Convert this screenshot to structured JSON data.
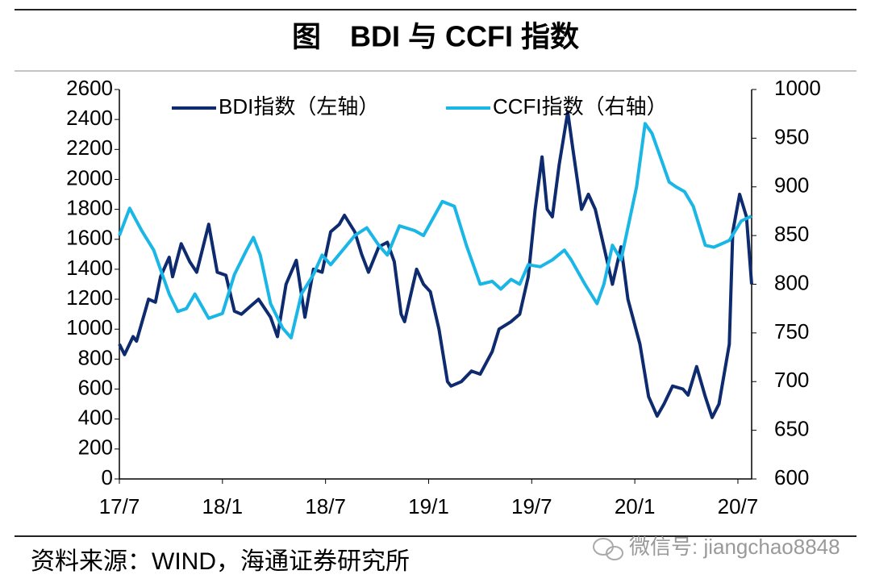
{
  "chart_data": {
    "type": "line",
    "title": "图　BDI 与 CCFI 指数",
    "source": "资料来源：WIND，海通证券研究所",
    "watermark": "微信号: jiangchao8848",
    "xlim": [
      0,
      36.8
    ],
    "xticks": [
      {
        "value": 0,
        "label": "17/7"
      },
      {
        "value": 6,
        "label": "18/1"
      },
      {
        "value": 12,
        "label": "18/7"
      },
      {
        "value": 18,
        "label": "19/1"
      },
      {
        "value": 24,
        "label": "19/7"
      },
      {
        "value": 30,
        "label": "20/1"
      },
      {
        "value": 36,
        "label": "20/7"
      }
    ],
    "ylim": [
      0,
      2600
    ],
    "yticks": [
      0,
      200,
      400,
      600,
      800,
      1000,
      1200,
      1400,
      1600,
      1800,
      2000,
      2200,
      2400,
      2600
    ],
    "y2lim": [
      600,
      1000
    ],
    "y2ticks": [
      600,
      650,
      700,
      750,
      800,
      850,
      900,
      950,
      1000
    ],
    "legend": "top",
    "series": [
      {
        "name": "BDI指数（左轴）",
        "color": "#0d2b6e",
        "axis": "y",
        "x": [
          0,
          0.3,
          0.8,
          1.0,
          1.7,
          2.1,
          2.4,
          2.9,
          3.1,
          3.6,
          4.1,
          4.5,
          5.2,
          5.7,
          6.2,
          6.7,
          7.1,
          7.6,
          8.1,
          8.8,
          9.2,
          9.7,
          10.3,
          10.8,
          11.3,
          11.8,
          12.3,
          12.8,
          13.1,
          13.7,
          14.1,
          14.5,
          15.1,
          15.6,
          16.0,
          16.4,
          16.6,
          17.1,
          17.3,
          17.7,
          18.1,
          18.6,
          19.1,
          19.3,
          19.9,
          20.5,
          21.0,
          21.7,
          22.1,
          22.8,
          23.3,
          23.8,
          24.2,
          24.6,
          24.9,
          25.2,
          25.6,
          26.1,
          26.4,
          26.9,
          27.3,
          27.7,
          28.1,
          28.7,
          29.2,
          29.6,
          30.3,
          30.8,
          31.3,
          31.7,
          32.2,
          32.8,
          33.1,
          33.6,
          34.1,
          34.5,
          34.9,
          35.5,
          35.7,
          36.1,
          36.5,
          36.8
        ],
        "values": [
          900,
          830,
          950,
          920,
          1200,
          1180,
          1350,
          1480,
          1350,
          1570,
          1450,
          1380,
          1700,
          1380,
          1360,
          1120,
          1100,
          1150,
          1200,
          1080,
          950,
          1300,
          1460,
          1080,
          1400,
          1380,
          1650,
          1700,
          1760,
          1650,
          1500,
          1380,
          1550,
          1580,
          1450,
          1100,
          1050,
          1300,
          1400,
          1300,
          1250,
          1000,
          650,
          620,
          650,
          720,
          700,
          850,
          1000,
          1050,
          1100,
          1350,
          1800,
          2150,
          1800,
          1750,
          2100,
          2450,
          2200,
          1800,
          1900,
          1800,
          1600,
          1300,
          1550,
          1200,
          900,
          550,
          420,
          500,
          620,
          600,
          560,
          750,
          550,
          410,
          500,
          900,
          1650,
          1900,
          1750,
          1300
        ]
      },
      {
        "name": "CCFI指数（右轴）",
        "color": "#1ab6e6",
        "axis": "y2",
        "x": [
          0,
          0.6,
          1.3,
          2.0,
          2.4,
          2.9,
          3.4,
          3.9,
          4.4,
          5.2,
          6.0,
          6.7,
          7.4,
          7.8,
          8.2,
          8.8,
          9.5,
          10.0,
          10.6,
          11.3,
          11.8,
          12.3,
          13.0,
          13.7,
          14.4,
          15.1,
          15.6,
          16.3,
          17.2,
          17.7,
          18.8,
          19.5,
          20.2,
          21.0,
          21.7,
          22.2,
          22.8,
          23.3,
          23.8,
          24.5,
          25.2,
          25.9,
          26.3,
          27.1,
          27.8,
          28.2,
          28.7,
          29.2,
          29.5,
          30.1,
          30.6,
          31.0,
          31.5,
          32.0,
          32.4,
          32.9,
          33.4,
          34.1,
          34.6,
          35.5,
          36.2,
          36.8
        ],
        "values": [
          850,
          878,
          855,
          835,
          815,
          790,
          772,
          775,
          790,
          765,
          770,
          810,
          835,
          848,
          830,
          780,
          755,
          745,
          790,
          810,
          830,
          820,
          835,
          850,
          858,
          840,
          830,
          860,
          855,
          850,
          885,
          880,
          840,
          800,
          803,
          795,
          805,
          800,
          820,
          818,
          825,
          835,
          825,
          800,
          780,
          800,
          840,
          825,
          850,
          900,
          965,
          955,
          930,
          905,
          900,
          895,
          880,
          840,
          838,
          845,
          865,
          870
        ]
      }
    ]
  }
}
